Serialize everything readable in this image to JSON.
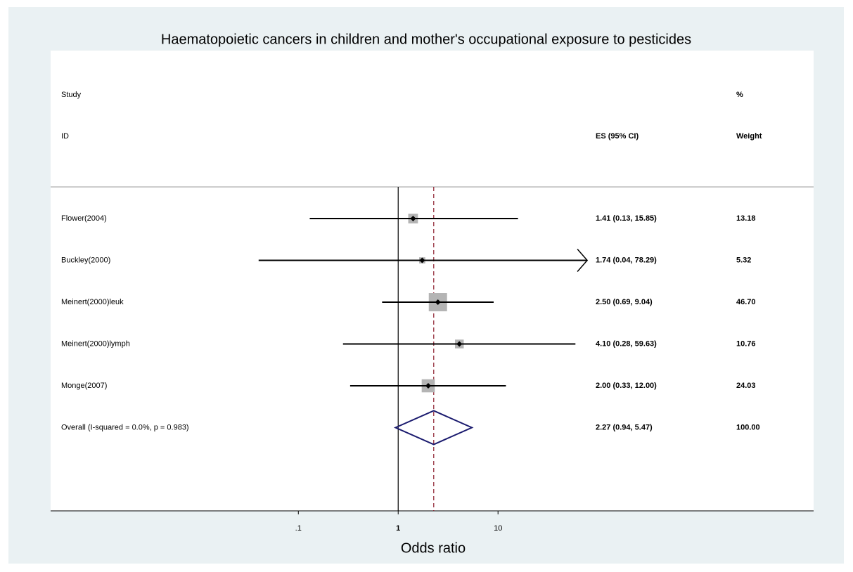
{
  "chart_data": {
    "type": "forest",
    "title": "Haematopoietic cancers in children and mother's occupational exposure to pesticides",
    "xlabel": "Odds ratio",
    "xscale": "log",
    "xlim": [
      0.00033,
      14500
    ],
    "xticks": [
      {
        "value": 0.1,
        "label": ".1"
      },
      1,
      10
    ],
    "null_line": 1,
    "headers": {
      "study": "Study",
      "id": "ID",
      "es": "ES (95% CI)",
      "pct": "%",
      "weight": "Weight"
    },
    "box_color": "#b4b4b4",
    "ci_color": "#000000",
    "overall_line_color": "#8b1a2a",
    "diamond_color": "#1a1a6e",
    "studies": [
      {
        "name": "Flower(2004)",
        "value": 1.41,
        "lower": 0.13,
        "upper": 15.85,
        "value_label": "1.41 (0.13, 15.85)",
        "weight": 13.18,
        "weight_label": "13.18",
        "arrow": false
      },
      {
        "name": "Buckley(2000)",
        "value": 1.74,
        "lower": 0.04,
        "upper": 78.29,
        "value_label": "1.74 (0.04, 78.29)",
        "weight": 5.32,
        "weight_label": "5.32",
        "arrow": true
      },
      {
        "name": "Meinert(2000)leuk",
        "value": 2.5,
        "lower": 0.69,
        "upper": 9.04,
        "value_label": "2.50 (0.69, 9.04)",
        "weight": 46.7,
        "weight_label": "46.70",
        "arrow": false
      },
      {
        "name": "Meinert(2000)lymph",
        "value": 4.1,
        "lower": 0.28,
        "upper": 59.63,
        "value_label": "4.10 (0.28, 59.63)",
        "weight": 10.76,
        "weight_label": "10.76",
        "arrow": false
      },
      {
        "name": "Monge(2007)",
        "value": 2.0,
        "lower": 0.33,
        "upper": 12.0,
        "value_label": "2.00 (0.33, 12.00)",
        "weight": 24.03,
        "weight_label": "24.03",
        "arrow": false
      }
    ],
    "overall": {
      "name": "Overall  (I-squared = 0.0%, p = 0.983)",
      "value": 2.27,
      "lower": 0.94,
      "upper": 5.47,
      "value_label": "2.27 (0.94, 5.47)",
      "weight_label": "100.00"
    }
  }
}
